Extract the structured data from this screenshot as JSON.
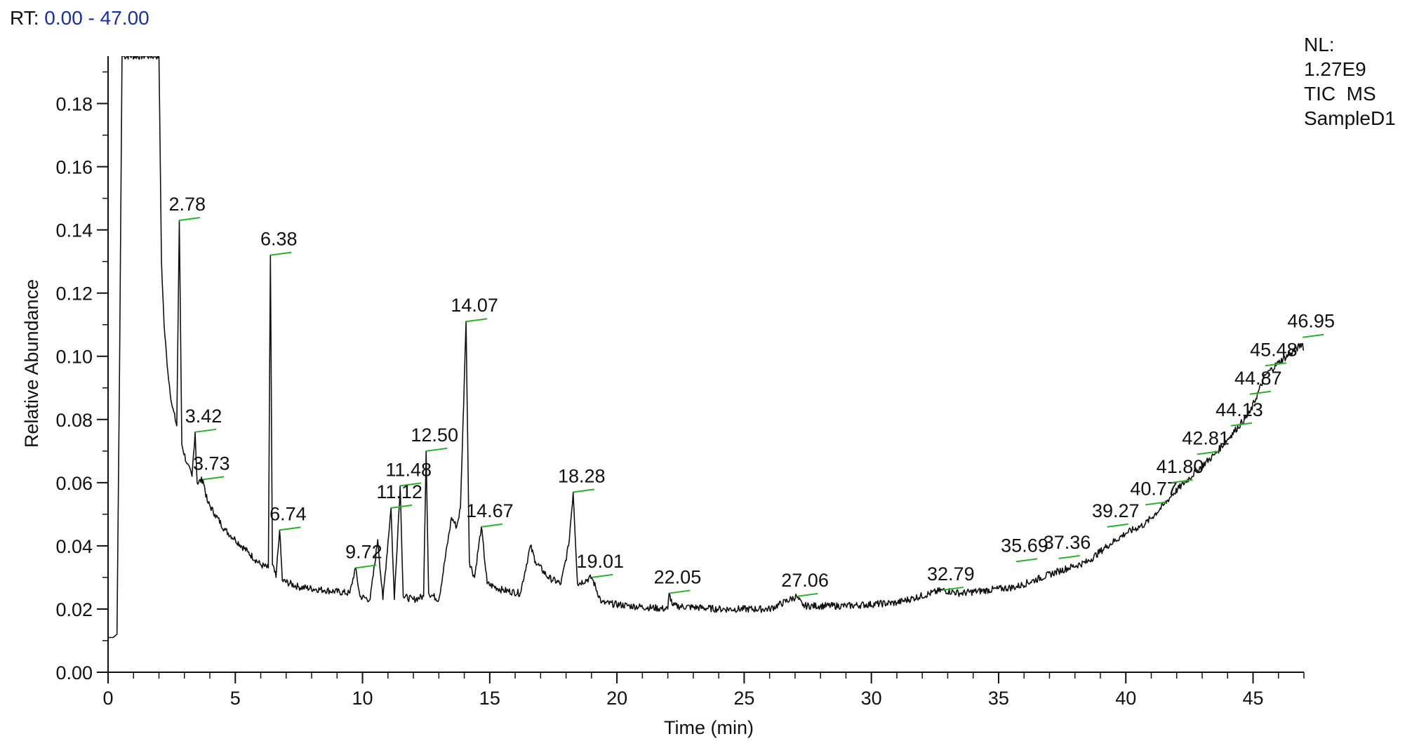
{
  "header": {
    "rt_prefix": "RT:",
    "rt_range": "0.00 - 47.00"
  },
  "info_box": {
    "lines": [
      "NL:",
      "1.27E9",
      "TIC  MS",
      "SampleD1"
    ]
  },
  "colors": {
    "trace": "#111111",
    "marker": "#2bb02b",
    "rt_value": "#1a2ea6"
  },
  "chart_data": {
    "type": "line",
    "title": "",
    "xlabel": "Time (min)",
    "ylabel": "Relative Abundance",
    "xlim": [
      0,
      47
    ],
    "ylim": [
      0,
      0.195
    ],
    "x_ticks": [
      0,
      5,
      10,
      15,
      20,
      25,
      30,
      35,
      40,
      45
    ],
    "y_ticks": [
      0.0,
      0.02,
      0.04,
      0.06,
      0.08,
      0.1,
      0.12,
      0.14,
      0.16,
      0.18
    ],
    "y_tick_labels": [
      "0.00",
      "0.02",
      "0.04",
      "0.06",
      "0.08",
      "0.10",
      "0.12",
      "0.14",
      "0.16",
      "0.18"
    ],
    "series": [
      {
        "x": [
          0.0,
          0.2,
          0.35,
          0.45,
          0.55,
          1.5,
          1.8,
          2.0,
          2.1,
          2.2,
          2.35,
          2.5,
          2.7,
          2.8,
          2.9,
          3.1,
          3.3,
          3.42,
          3.5,
          3.73,
          3.9,
          4.2,
          4.6,
          5.0,
          5.5,
          6.0,
          6.3,
          6.38,
          6.46,
          6.6,
          6.74,
          6.85,
          7.5,
          8.5,
          9.5,
          9.72,
          9.9,
          10.3,
          10.6,
          10.8,
          11.12,
          11.25,
          11.48,
          11.6,
          12.0,
          12.4,
          12.5,
          12.6,
          13.0,
          13.5,
          13.7,
          13.85,
          14.07,
          14.2,
          14.4,
          14.67,
          14.9,
          15.5,
          16.2,
          16.6,
          16.8,
          17.3,
          17.8,
          18.1,
          18.28,
          18.45,
          19.01,
          19.4,
          20.5,
          22.0,
          22.05,
          22.2,
          24.0,
          26.0,
          27.06,
          27.3,
          29.0,
          31.0,
          32.79,
          33.5,
          35.69,
          37.36,
          38.5,
          39.27,
          40.0,
          40.77,
          41.5,
          41.8,
          42.81,
          43.5,
          44.13,
          44.87,
          45.48,
          46.0,
          46.5,
          46.95,
          47.0
        ],
        "y": [
          0.011,
          0.011,
          0.012,
          0.095,
          0.195,
          0.195,
          0.195,
          0.195,
          0.13,
          0.11,
          0.095,
          0.085,
          0.078,
          0.143,
          0.072,
          0.066,
          0.062,
          0.076,
          0.06,
          0.061,
          0.054,
          0.05,
          0.045,
          0.042,
          0.038,
          0.034,
          0.033,
          0.132,
          0.034,
          0.03,
          0.045,
          0.029,
          0.027,
          0.026,
          0.025,
          0.033,
          0.024,
          0.023,
          0.042,
          0.023,
          0.052,
          0.023,
          0.059,
          0.024,
          0.023,
          0.024,
          0.07,
          0.025,
          0.023,
          0.049,
          0.046,
          0.052,
          0.111,
          0.035,
          0.03,
          0.046,
          0.028,
          0.026,
          0.025,
          0.04,
          0.035,
          0.03,
          0.028,
          0.04,
          0.057,
          0.028,
          0.03,
          0.022,
          0.021,
          0.02,
          0.025,
          0.021,
          0.02,
          0.02,
          0.024,
          0.021,
          0.021,
          0.022,
          0.026,
          0.025,
          0.027,
          0.032,
          0.035,
          0.04,
          0.044,
          0.047,
          0.053,
          0.056,
          0.064,
          0.069,
          0.075,
          0.082,
          0.094,
          0.098,
          0.101,
          0.104,
          0.102
        ]
      }
    ],
    "annotations": [
      {
        "text": "2.78",
        "x": 2.78,
        "y": 0.143
      },
      {
        "text": "6.38",
        "x": 6.38,
        "y": 0.132
      },
      {
        "text": "14.07",
        "x": 14.07,
        "y": 0.111
      },
      {
        "text": "12.50",
        "x": 12.5,
        "y": 0.07
      },
      {
        "text": "3.42",
        "x": 3.42,
        "y": 0.076
      },
      {
        "text": "3.73",
        "x": 3.73,
        "y": 0.061
      },
      {
        "text": "11.48",
        "x": 11.48,
        "y": 0.059
      },
      {
        "text": "11.12",
        "x": 11.12,
        "y": 0.052
      },
      {
        "text": "18.28",
        "x": 18.28,
        "y": 0.057
      },
      {
        "text": "6.74",
        "x": 6.74,
        "y": 0.045
      },
      {
        "text": "14.67",
        "x": 14.67,
        "y": 0.046
      },
      {
        "text": "9.72",
        "x": 9.72,
        "y": 0.033
      },
      {
        "text": "19.01",
        "x": 19.01,
        "y": 0.03
      },
      {
        "text": "22.05",
        "x": 22.05,
        "y": 0.025
      },
      {
        "text": "27.06",
        "x": 27.06,
        "y": 0.024
      },
      {
        "text": "32.79",
        "x": 32.79,
        "y": 0.026
      },
      {
        "text": "35.69",
        "x": 35.69,
        "y": 0.035
      },
      {
        "text": "37.36",
        "x": 37.36,
        "y": 0.036
      },
      {
        "text": "39.27",
        "x": 39.27,
        "y": 0.046
      },
      {
        "text": "40.77",
        "x": 40.77,
        "y": 0.053
      },
      {
        "text": "41.80",
        "x": 41.8,
        "y": 0.06
      },
      {
        "text": "42.81",
        "x": 42.81,
        "y": 0.069
      },
      {
        "text": "44.13",
        "x": 44.13,
        "y": 0.078
      },
      {
        "text": "44.87",
        "x": 44.87,
        "y": 0.088
      },
      {
        "text": "45.48",
        "x": 45.48,
        "y": 0.097
      },
      {
        "text": "46.95",
        "x": 46.95,
        "y": 0.106
      }
    ]
  }
}
